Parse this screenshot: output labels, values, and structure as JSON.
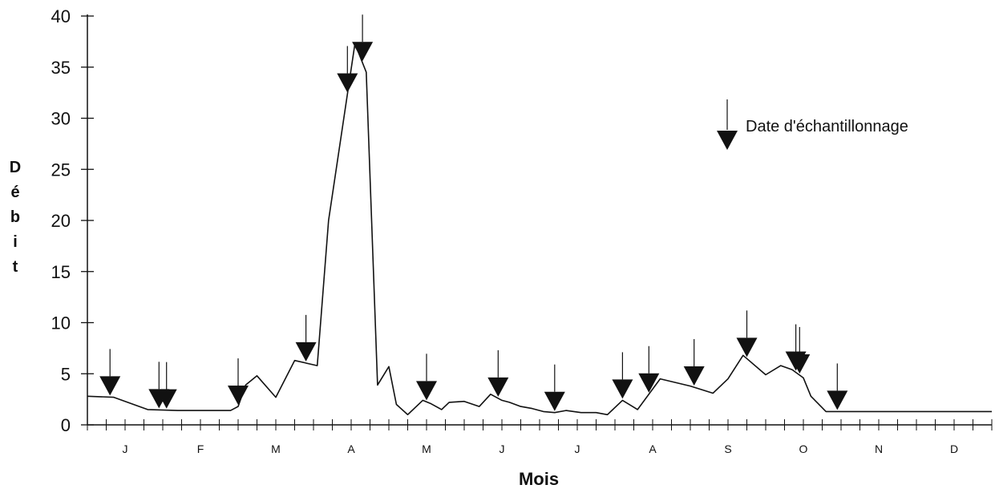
{
  "chart_data": {
    "type": "line",
    "xlabel": "Mois",
    "ylabel": "Débit",
    "ylim": [
      0,
      40
    ],
    "yticks": [
      "0",
      "5",
      "10",
      "15",
      "20",
      "25",
      "30",
      "35",
      "40"
    ],
    "months": [
      "J",
      "F",
      "M",
      "A",
      "M",
      "J",
      "J",
      "A",
      "S",
      "O",
      "N",
      "D"
    ],
    "xlim": [
      0,
      12
    ],
    "grid": false,
    "legend": {
      "label": "Date d'échantillonnage",
      "position": "top-right"
    },
    "series": [
      {
        "x": [
          0,
          0.35,
          0.8,
          1.2,
          1.6,
          1.9,
          2.0,
          2.1,
          2.25,
          2.5,
          2.75,
          3.05,
          3.2,
          3.55,
          3.7,
          3.85,
          4.0,
          4.1,
          4.25,
          4.45,
          4.55,
          4.7,
          4.8,
          5.0,
          5.2,
          5.35,
          5.5,
          5.6,
          5.75,
          5.9,
          6.05,
          6.2,
          6.35,
          6.55,
          6.75,
          6.9,
          7.1,
          7.3,
          7.6,
          8.0,
          8.3,
          8.5,
          8.7,
          9.0,
          9.2,
          9.35,
          9.5,
          9.6,
          9.8,
          10.0,
          10.3,
          10.55,
          10.75,
          10.95,
          11.2,
          11.4,
          11.6,
          11.8,
          12.0
        ],
        "y": [
          2.8,
          2.7,
          1.5,
          1.4,
          1.4,
          1.4,
          1.8,
          3.9,
          4.8,
          2.7,
          6.3,
          5.8,
          20.0,
          37.3,
          34.5,
          3.9,
          5.7,
          2.0,
          1.0,
          2.4,
          2.1,
          1.5,
          2.2,
          2.3,
          1.8,
          3.0,
          2.4,
          2.2,
          1.8,
          1.6,
          1.3,
          1.2,
          1.4,
          1.2,
          1.2,
          1.0,
          2.4,
          1.5,
          4.5,
          3.8,
          3.1,
          4.5,
          6.8,
          4.9,
          5.8,
          5.4,
          4.6,
          2.8,
          1.3,
          1.3,
          1.3,
          1.3,
          1.3,
          1.3,
          1.3,
          1.3,
          1.3,
          1.3,
          1.3
        ]
      }
    ],
    "sampling_dates": [
      0.3,
      0.95,
      1.05,
      2.0,
      2.9,
      3.45,
      3.65,
      4.5,
      5.45,
      6.2,
      7.1,
      7.45,
      8.05,
      8.75,
      9.4,
      9.45,
      9.95
    ]
  }
}
